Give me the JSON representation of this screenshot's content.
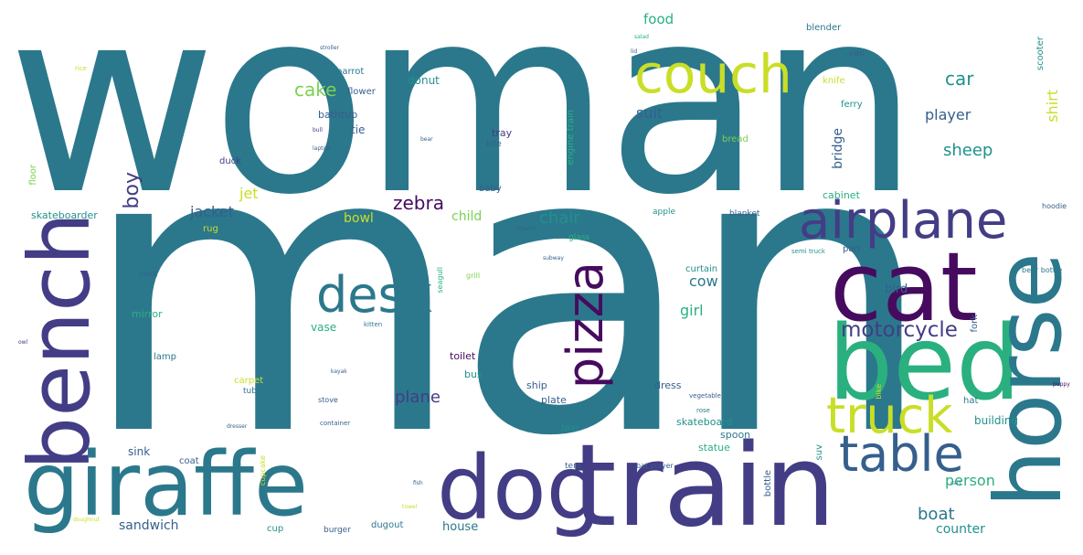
{
  "colors": {
    "teal": "#2b788c",
    "indigo": "#433d86",
    "purple": "#460b5e",
    "green": "#2ab07f",
    "lime": "#c9de26",
    "cyan": "#21918c",
    "light_green": "#7ad151",
    "slate": "#355f8d"
  },
  "words": {
    "woman": "woman",
    "man": "man",
    "bench": "bench",
    "giraffe": "giraffe",
    "dog": "dog",
    "train": "train",
    "cat": "cat",
    "bed": "bed",
    "horse": "horse",
    "couch": "couch",
    "airplane": "airplane",
    "desk": "desk",
    "pizza": "pizza",
    "table": "table",
    "truck": "truck",
    "motorcycle": "motorcycle",
    "boy": "boy",
    "cake": "cake",
    "car": "car",
    "sheep": "sheep",
    "player": "player",
    "shirt": "shirt",
    "suit": "suit",
    "zebra": "zebra",
    "chair": "chair",
    "jacket": "jacket",
    "jet": "jet",
    "bowl": "bowl",
    "child": "child",
    "plane": "plane",
    "girl": "girl",
    "cow": "cow",
    "boat": "boat",
    "person": "person",
    "counter": "counter",
    "sandwich": "sandwich",
    "house": "house",
    "bridge": "bridge",
    "bird": "bird",
    "food": "food",
    "donut": "donut",
    "tie": "tie",
    "parrot": "parrot",
    "flower": "flower",
    "bathtub": "bathtub",
    "tray": "tray",
    "kite": "kite",
    "duck": "duck",
    "baby": "baby",
    "bread": "bread",
    "knife": "knife",
    "van": "van",
    "blender": "blender",
    "scooter": "scooter",
    "ferry": "ferry",
    "cabinet": "cabinet",
    "blanket": "blanket",
    "apple": "apple",
    "skateboarder": "skateboarder",
    "floor": "floor",
    "rug": "rug",
    "glass": "glass",
    "mirror": "mirror",
    "vase": "vase",
    "curtain": "curtain",
    "lamp": "lamp",
    "toilet": "toilet",
    "bus": "bus",
    "ship": "ship",
    "plate": "plate",
    "dress": "dress",
    "skateboard": "skateboard",
    "building": "building",
    "taxi": "taxi",
    "spoon": "spoon",
    "statue": "statue",
    "sink": "sink",
    "coat": "coat",
    "tent": "tent",
    "cup": "cup",
    "burger": "burger",
    "dugout": "dugout",
    "carpet": "carpet",
    "tub": "tub",
    "pan": "pan",
    "fork": "fork",
    "hat": "hat",
    "suv": "suv",
    "bottle": "bottle",
    "engine_train": "engine train",
    "bat_player": "bat player",
    "beer_bottle": "beer bottle",
    "semi_truck": "semi truck",
    "hoodie": "hoodie",
    "clock": "clock",
    "seagull": "seagull",
    "grill": "grill",
    "kitten": "kitten",
    "stove": "stove",
    "container": "container",
    "cupcake": "cupcake",
    "vegetable": "vegetable",
    "rose": "rose",
    "bike": "bike",
    "bear": "bear",
    "laptop": "laptop",
    "bull": "bull",
    "church": "church",
    "subway": "subway",
    "rice": "rice",
    "fish": "fish",
    "kayak": "kayak",
    "dresser": "dresser",
    "towel": "towel",
    "puppy": "puppy",
    "salad": "salad",
    "stroller": "stroller",
    "owl": "owl",
    "lid": "lid",
    "cart": "cart",
    "doughnut": "doughnut"
  }
}
